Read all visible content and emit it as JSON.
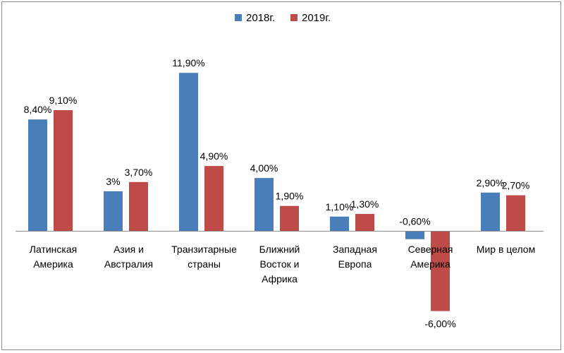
{
  "chart_data": {
    "type": "bar",
    "title": "",
    "xlabel": "",
    "ylabel": "",
    "ylim": [
      -6.5,
      12.5
    ],
    "grid": false,
    "legend_position": "top-center",
    "categories": [
      [
        "Латинская",
        "Америка"
      ],
      [
        "Азия и",
        "Австралия"
      ],
      [
        "Транзитарные",
        "страны"
      ],
      [
        "Ближний",
        "Восток и",
        "Африка"
      ],
      [
        "Западная",
        "Европа"
      ],
      [
        "Северная",
        "Америка"
      ],
      [
        "Мир в целом"
      ]
    ],
    "series": [
      {
        "name": "2018г.",
        "color": "#4a7ebb",
        "values": [
          8.4,
          3.0,
          11.9,
          4.0,
          1.1,
          -0.6,
          2.9
        ],
        "labels": [
          "8,40%",
          "3%",
          "11,90%",
          "4,00%",
          "1,10%",
          "-0,60%",
          "2,90%"
        ]
      },
      {
        "name": "2019г.",
        "color": "#be4b48",
        "values": [
          9.1,
          3.7,
          4.9,
          1.9,
          1.3,
          -6.0,
          2.7
        ],
        "labels": [
          "9,10%",
          "3,70%",
          "4,90%",
          "1,90%",
          "1,30%",
          "-6,00%",
          "2,70%"
        ]
      }
    ]
  }
}
